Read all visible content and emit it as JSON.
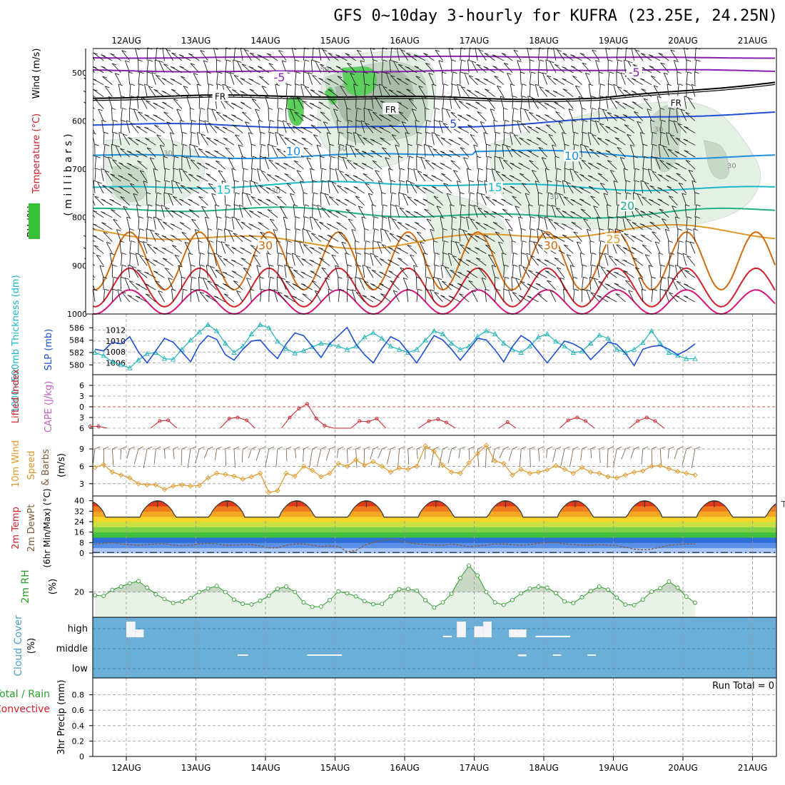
{
  "title": "GFS 0~10day 3-hourly for KUFRA (23.25E, 24.25N)",
  "colors": {
    "purple": "#8a1fb3",
    "black": "#000000",
    "blue": "#1f4fd6",
    "lightblue": "#1c8fe0",
    "cyan": "#19b7c8",
    "green": "#1fb082",
    "orange": "#e0982a",
    "darkorange": "#d36a10",
    "red": "#d0202a",
    "magenta": "#d81478",
    "rhlight": "#e3f0e3",
    "rhmid": "#c7d8c7",
    "rhdark": "#a9bca9",
    "rhgreen": "#5ccf5c",
    "cloud": "#6baed6"
  },
  "chart_data": [
    {
      "type": "cross_section",
      "id": "upper",
      "x_dates": [
        "12AUG",
        "13AUG",
        "14AUG",
        "15AUG",
        "16AUG",
        "17AUG",
        "18AUG",
        "19AUG",
        "20AUG",
        "21AUG"
      ],
      "ylabel_parts": [
        "Wind (m/s)",
        "Temperature (°C)",
        "RH (%)",
        "millibars"
      ],
      "ylabel_mb": "( m i l l i b a r s )",
      "ylabel_wind": "Wind (m/s)",
      "ylabel_temp": "Temperature (°C)",
      "ylabel_rh": "RH (%)",
      "ylim": [
        450,
        1000
      ],
      "yticks": [
        500,
        600,
        700,
        800,
        900,
        1000
      ],
      "isotherm_labels": [
        {
          "text": "-5",
          "day": 2.2,
          "p": 512,
          "color": "#8a1fb3"
        },
        {
          "text": "-5",
          "day": 7.3,
          "p": 502,
          "color": "#8a1fb3"
        },
        {
          "text": "FR",
          "day": 1.35,
          "p": 550,
          "color": "#000000"
        },
        {
          "text": "FR",
          "day": 3.8,
          "p": 577,
          "color": "#000000"
        },
        {
          "text": "FR",
          "day": 7.9,
          "p": 563,
          "color": "#000000"
        },
        {
          "text": "5",
          "day": 4.7,
          "p": 608,
          "color": "#1f4fd6"
        },
        {
          "text": "10",
          "day": 2.4,
          "p": 665,
          "color": "#1c8fe0"
        },
        {
          "text": "10",
          "day": 6.4,
          "p": 675,
          "color": "#1c8fe0"
        },
        {
          "text": "15",
          "day": 1.4,
          "p": 745,
          "color": "#19b7c8"
        },
        {
          "text": "15",
          "day": 5.3,
          "p": 740,
          "color": "#19b7c8"
        },
        {
          "text": "20",
          "day": 7.2,
          "p": 778,
          "color": "#1fb082"
        },
        {
          "text": "25",
          "day": 7.0,
          "p": 847,
          "color": "#e0982a"
        },
        {
          "text": "30",
          "day": 2.0,
          "p": 860,
          "color": "#d36a10"
        },
        {
          "text": "30",
          "day": 6.1,
          "p": 860,
          "color": "#d36a10"
        }
      ],
      "rh_labels": [
        {
          "text": "30",
          "day": 0.6,
          "p": 672
        },
        {
          "text": "50",
          "day": 2.85,
          "p": 498
        },
        {
          "text": "50",
          "day": 3.1,
          "p": 662
        },
        {
          "text": "30",
          "day": 2.15,
          "p": 750
        },
        {
          "text": "30",
          "day": 6.15,
          "p": 762
        },
        {
          "text": "30",
          "day": 7.65,
          "p": 622
        },
        {
          "text": "30",
          "day": 8.7,
          "p": 698
        }
      ]
    },
    {
      "type": "line",
      "id": "slp_thickness",
      "ylabel_left": "1000~500mb Thickness (dm)",
      "ylabel_right": "SLP (mb)",
      "yticks_thickness": [
        580,
        582,
        584,
        586
      ],
      "yticks_slp": [
        1006,
        1008,
        1010,
        1012
      ],
      "series": [
        {
          "name": "SLP (mb)",
          "color": "#1f4fd6",
          "values": [
            1008.5,
            1008.2,
            1009.8,
            1009.5,
            1010.8,
            1008.0,
            1006.0,
            1008.2,
            1010.5,
            1009.8,
            1008.0,
            1006.2,
            1009.3,
            1011.0,
            1010.3,
            1007.5,
            1006.5,
            1008.5,
            1010.0,
            1010.2,
            1008.3,
            1006.8,
            1009.5,
            1011.5,
            1011.0,
            1009.0,
            1007.0,
            1009.5,
            1011.0,
            1012.5,
            1009.5,
            1007.5,
            1006.0,
            1008.6,
            1010.8,
            1010.0,
            1008.0,
            1006.0,
            1008.5,
            1011.0,
            1010.2,
            1008.5,
            1006.5,
            1008.5,
            1010.5,
            1010.2,
            1008.4,
            1006.2,
            1009.0,
            1011.0,
            1010.0,
            1008.0,
            1006.0,
            1008.0,
            1010.0,
            1009.5,
            1008.6,
            1006.6,
            1008.2,
            1009.8,
            1009.4,
            1007.8,
            1005.5,
            1008.5,
            1009.0,
            1009.2,
            1008.5,
            1007.5,
            1008.3,
            1009.5
          ]
        },
        {
          "name": "1000~500mb Thickness (dm)",
          "color": "#20b5b8",
          "values": [
            582.0,
            581.5,
            580.5,
            580.0,
            579.5,
            580.8,
            581.8,
            582.0,
            581.0,
            580.9,
            582.5,
            584.0,
            585.3,
            586.5,
            585.5,
            583.5,
            582.0,
            583.0,
            585.0,
            586.5,
            586.0,
            583.8,
            582.6,
            581.9,
            582.3,
            582.9,
            583.5,
            583.3,
            583.0,
            582.5,
            583.0,
            584.5,
            585.2,
            584.3,
            583.0,
            582.5,
            582.0,
            582.5,
            584.0,
            585.5,
            585.0,
            583.5,
            582.5,
            583.0,
            584.6,
            585.5,
            585.0,
            583.5,
            582.5,
            582.0,
            583.0,
            584.5,
            585.0,
            583.8,
            583.0,
            582.0,
            582.2,
            583.5,
            584.8,
            584.3,
            582.5,
            582.0,
            582.5,
            583.6,
            585.5,
            583.5,
            582.0,
            581.5,
            581.0,
            581.0
          ]
        }
      ]
    },
    {
      "type": "line",
      "id": "cape_li",
      "ylabel_left": "Lifted Index",
      "ylabel_right": "CAPE (J/kg)",
      "yticks": [
        -6,
        -3,
        0,
        3,
        6
      ],
      "series": [
        {
          "name": "Lifted Index",
          "color": "#d0202a",
          "points": [
            [
              0.03,
              5.5
            ],
            [
              0.15,
              5.5
            ],
            [
              0.28,
              6.0
            ],
            [
              0.9,
              6.0
            ],
            [
              1.03,
              4.0
            ],
            [
              1.15,
              3.8
            ],
            [
              1.28,
              6.0
            ],
            [
              1.9,
              6.0
            ],
            [
              2.03,
              3.3
            ],
            [
              2.15,
              3.0
            ],
            [
              2.28,
              3.8
            ],
            [
              2.4,
              6.0
            ],
            [
              2.78,
              6.0
            ],
            [
              2.9,
              3.0
            ],
            [
              3.03,
              0.5
            ],
            [
              3.15,
              -0.8
            ],
            [
              3.28,
              3.3
            ],
            [
              3.4,
              5.3
            ],
            [
              3.53,
              6.0
            ],
            [
              3.78,
              6.0
            ],
            [
              3.9,
              4.0
            ],
            [
              4.03,
              4.2
            ],
            [
              4.15,
              3.3
            ],
            [
              4.28,
              6.0
            ],
            [
              4.75,
              6.0
            ],
            [
              4.9,
              4.0
            ],
            [
              5.03,
              3.5
            ],
            [
              5.15,
              4.4
            ],
            [
              5.28,
              6.0
            ],
            [
              5.9,
              6.0
            ],
            [
              6.03,
              4.3
            ],
            [
              6.15,
              6.0
            ],
            [
              6.78,
              6.0
            ],
            [
              6.9,
              3.8
            ],
            [
              7.03,
              3.0
            ],
            [
              7.15,
              4.0
            ],
            [
              7.28,
              6.0
            ],
            [
              7.78,
              6.0
            ],
            [
              7.9,
              4.0
            ],
            [
              8.03,
              3.0
            ],
            [
              8.15,
              4.0
            ],
            [
              8.28,
              6.0
            ]
          ]
        }
      ],
      "zero_line_color": "#d0202a"
    },
    {
      "type": "line",
      "id": "wind10m",
      "ylabel": "10m Wind Speed & Barbs (m/s)",
      "ylabel_a": "10m Wind",
      "ylabel_b": "Speed",
      "ylabel_c": "& Barbs",
      "ylabel_unit": "(m/s)",
      "yticks": [
        3,
        6,
        9
      ],
      "series": [
        {
          "name": "10m Wind Speed",
          "color": "#e0982a",
          "values": [
            5.8,
            6.3,
            5.0,
            4.5,
            4.0,
            3.0,
            2.8,
            2.8,
            2.0,
            2.6,
            2.8,
            2.6,
            2.7,
            4.0,
            4.8,
            4.6,
            4.3,
            3.8,
            4.2,
            4.8,
            1.5,
            1.8,
            4.8,
            4.3,
            6.0,
            5.3,
            4.2,
            4.8,
            6.5,
            6.0,
            7.1,
            6.2,
            6.8,
            6.0,
            5.0,
            5.7,
            5.5,
            6.0,
            9.5,
            8.6,
            6.2,
            5.0,
            4.8,
            6.6,
            8.2,
            9.6,
            6.9,
            6.5,
            4.5,
            5.5,
            4.8,
            5.0,
            5.4,
            6.1,
            5.5,
            4.8,
            5.8,
            5.0,
            4.8,
            4.2,
            4.0,
            4.5,
            5.0,
            5.2,
            6.0,
            6.1,
            5.6,
            5.1,
            4.8,
            4.5
          ]
        }
      ]
    },
    {
      "type": "area",
      "id": "temp2m",
      "ylabel_a": "2m Temp",
      "ylabel_b": "2m DewPt",
      "ylabel_c": "(6hr Min/Max) (°C)",
      "yticks": [
        0,
        8,
        16,
        24,
        32,
        40
      ],
      "band_colors": [
        "#a9c8f5",
        "#5a8fe8",
        "#2e6fd8",
        "#3fbf3f",
        "#7ed04a",
        "#c8e040",
        "#f5d32a",
        "#f5a623",
        "#f07a1e",
        "#e0391a",
        "#b81a1a",
        "#7a0a0a"
      ],
      "temp_cycle": {
        "min": 27.5,
        "max": 40.0
      },
      "dewpoint_values": [
        7.0,
        7.5,
        8.0,
        7.0,
        6.5,
        6.0,
        6.5,
        7.0,
        7.2,
        6.0,
        5.5,
        6.0,
        7.0,
        7.5,
        7.0,
        6.0,
        6.0,
        6.5,
        6.5,
        5.5,
        4.0,
        4.0,
        6.0,
        7.0,
        7.0,
        6.0,
        5.0,
        5.5,
        5.0,
        1.0,
        2.0,
        6.0,
        8.0,
        9.5,
        10.5,
        9.5,
        8.0,
        7.0,
        6.5,
        6.0,
        6.0,
        7.0,
        6.0,
        5.0,
        5.5,
        6.0,
        7.0,
        7.0,
        6.5,
        6.0,
        6.5,
        7.5,
        8.0,
        8.0,
        7.0,
        6.5,
        6.0,
        6.0,
        6.5,
        6.0,
        5.5,
        4.5,
        3.0,
        2.5,
        3.0,
        4.5,
        6.0,
        6.5,
        7.0,
        7.0
      ]
    },
    {
      "type": "area",
      "id": "rh2m",
      "ylabel": "2m RH (%)",
      "ylabel_unit": "(%)",
      "yticks": [
        20
      ],
      "series": [
        {
          "name": "2m RH",
          "color": "#2a9d2a",
          "values": [
            18.5,
            18.2,
            21.0,
            22.5,
            24.0,
            25.0,
            22.0,
            19.0,
            16.8,
            15.0,
            15.6,
            17.2,
            20.0,
            21.6,
            22.8,
            20.0,
            16.5,
            14.6,
            14.3,
            16.0,
            18.3,
            21.5,
            22.5,
            20.0,
            15.2,
            13.2,
            13.3,
            16.3,
            20.3,
            19.4,
            18.0,
            15.8,
            14.4,
            14.5,
            18.0,
            21.3,
            21.4,
            20.6,
            16.2,
            12.9,
            15.2,
            19.2,
            26.4,
            32.2,
            27.6,
            20.0,
            15.2,
            14.1,
            16.3,
            19.4,
            21.6,
            22.5,
            22.0,
            19.5,
            15.7,
            14.9,
            17.6,
            20.4,
            22.5,
            21.1,
            17.4,
            14.2,
            14.0,
            16.5,
            20.2,
            21.8,
            24.8,
            22.0,
            17.9,
            15.1
          ]
        }
      ]
    },
    {
      "type": "bar",
      "id": "cloud",
      "ylabel": "Cloud Cover (%)",
      "ylabel_unit": "(%)",
      "levels": [
        "high",
        "middle",
        "low"
      ],
      "high": [
        [
          0.55,
          0.68,
          1.0
        ],
        [
          0.68,
          0.8,
          0.5
        ],
        [
          5.1,
          5.23,
          0.1
        ],
        [
          5.3,
          5.43,
          1.0
        ],
        [
          5.55,
          5.68,
          0.7
        ],
        [
          5.68,
          5.8,
          1.0
        ],
        [
          6.05,
          6.18,
          0.5
        ],
        [
          6.18,
          6.3,
          0.5
        ],
        [
          6.43,
          6.55,
          0.1
        ],
        [
          6.55,
          6.68,
          0.1
        ],
        [
          6.68,
          6.8,
          0.1
        ],
        [
          6.8,
          6.93,
          0.1
        ]
      ],
      "middle": [
        [
          2.15,
          2.3,
          0.2
        ],
        [
          3.15,
          3.28,
          0.15
        ],
        [
          3.28,
          3.4,
          0.15
        ],
        [
          3.4,
          3.53,
          0.15
        ],
        [
          3.53,
          3.65,
          0.15
        ],
        [
          6.18,
          6.3,
          0.4
        ],
        [
          6.68,
          6.8,
          0.2
        ],
        [
          7.18,
          7.3,
          0.2
        ]
      ]
    },
    {
      "type": "bar",
      "id": "precip",
      "ylabel_a": "Total / Rain",
      "ylabel_b": "Convective",
      "ylabel_c": "3hr Precip (mm)",
      "yticks": [
        0,
        0.2,
        0.4,
        0.6,
        0.8
      ],
      "ylim": [
        0,
        1.0
      ],
      "run_total": "Run Total = 0",
      "values": []
    }
  ]
}
